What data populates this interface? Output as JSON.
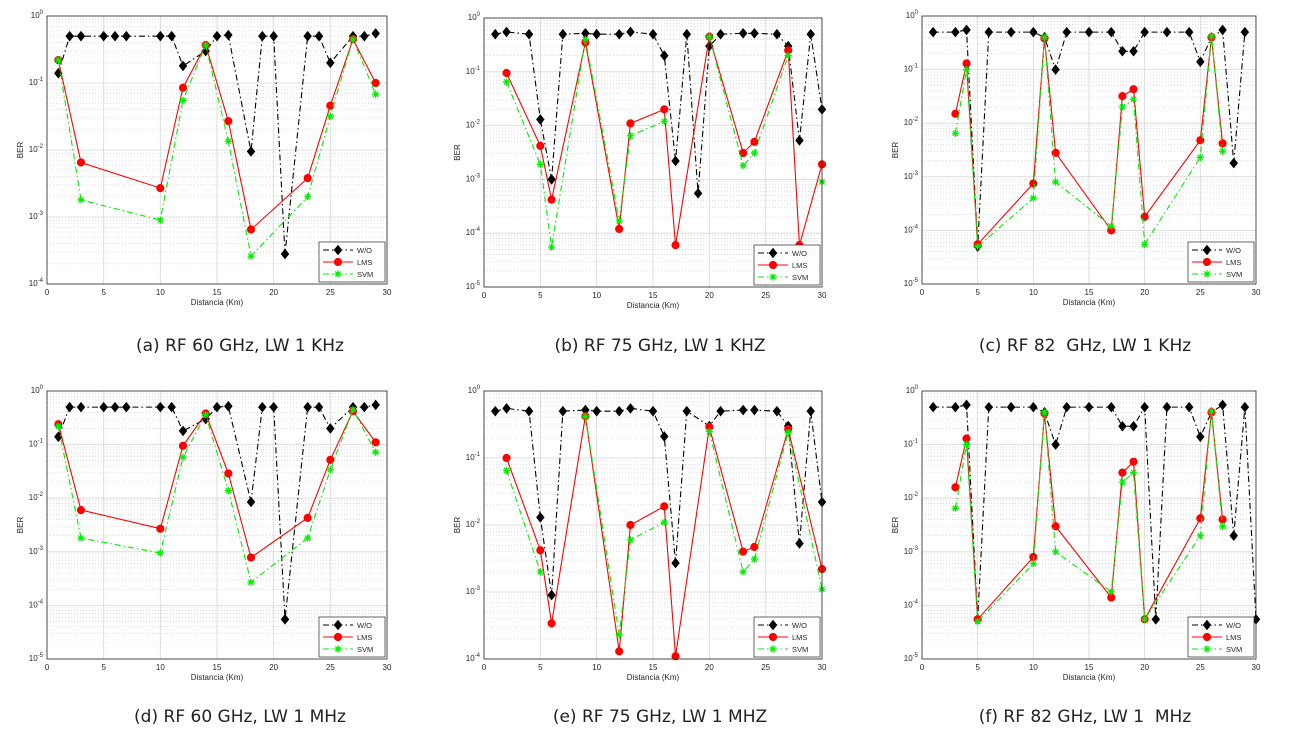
{
  "chart_data": [
    {
      "id": "a",
      "type": "line",
      "caption": "(a) RF 60 GHz, LW 1 KHz",
      "xlabel": "Distancia (Km)",
      "ylabel": "BER",
      "xlim": [
        0,
        30
      ],
      "ylim": [
        0.0001,
        1
      ],
      "yscale": "log",
      "grid": true,
      "xticks": [
        "0",
        "5",
        "10",
        "15",
        "20",
        "25",
        "30"
      ],
      "yticks": [
        "10-4",
        "10-3",
        "10-2",
        "10-1",
        "100"
      ],
      "legend_position": "bottom-right",
      "series": [
        {
          "name": "W/O",
          "x": [
            1,
            2,
            3,
            5,
            6,
            7,
            10,
            11,
            12,
            14,
            15,
            16,
            18,
            19,
            20,
            21,
            23,
            24,
            25,
            27,
            28,
            29
          ],
          "y": [
            0.14,
            0.5,
            0.5,
            0.5,
            0.5,
            0.5,
            0.5,
            0.5,
            0.18,
            0.3,
            0.5,
            0.52,
            0.0095,
            0.5,
            0.5,
            0.00028,
            0.5,
            0.5,
            0.2,
            0.5,
            0.5,
            0.55
          ]
        },
        {
          "name": "LMS",
          "x": [
            1,
            3,
            10,
            12,
            14,
            16,
            18,
            23,
            25,
            27,
            29
          ],
          "y": [
            0.22,
            0.0065,
            0.0027,
            0.085,
            0.37,
            0.027,
            0.00065,
            0.0038,
            0.046,
            0.45,
            0.1
          ]
        },
        {
          "name": "SVM",
          "x": [
            1,
            3,
            10,
            12,
            14,
            16,
            18,
            23,
            25,
            27,
            29
          ],
          "y": [
            0.22,
            0.0018,
            0.0009,
            0.055,
            0.37,
            0.0135,
            0.00026,
            0.002,
            0.032,
            0.45,
            0.068
          ]
        }
      ]
    },
    {
      "id": "b",
      "type": "line",
      "caption": "(b) RF 75 GHz, LW 1 KHZ",
      "xlabel": "Distancia (Km)",
      "ylabel": "BER",
      "xlim": [
        0,
        30
      ],
      "ylim": [
        1e-05,
        1
      ],
      "yscale": "log",
      "grid": true,
      "xticks": [
        "0",
        "5",
        "10",
        "15",
        "20",
        "25",
        "30"
      ],
      "yticks": [
        "10-5",
        "10-4",
        "10-3",
        "10-2",
        "10-1",
        "100"
      ],
      "legend_position": "bottom-right",
      "series": [
        {
          "name": "W/O",
          "x": [
            1,
            2,
            4,
            5,
            6,
            7,
            9,
            10,
            12,
            13,
            15,
            16,
            17,
            18,
            19,
            20,
            21,
            23,
            24,
            26,
            27,
            28,
            29,
            30
          ],
          "y": [
            0.5,
            0.55,
            0.5,
            0.013,
            0.001,
            0.5,
            0.52,
            0.5,
            0.5,
            0.55,
            0.5,
            0.2,
            0.0022,
            0.5,
            0.00055,
            0.3,
            0.5,
            0.52,
            0.52,
            0.5,
            0.3,
            0.0053,
            0.5,
            0.02
          ]
        },
        {
          "name": "LMS",
          "x": [
            2,
            5,
            6,
            9,
            12,
            13,
            16,
            17,
            20,
            23,
            24,
            27,
            28,
            30
          ],
          "y": [
            0.095,
            0.0042,
            0.00042,
            0.35,
            0.00012,
            0.011,
            0.02,
            6e-05,
            0.45,
            0.0031,
            0.005,
            0.25,
            6e-05,
            0.0019
          ]
        },
        {
          "name": "SVM",
          "x": [
            2,
            5,
            6,
            9,
            12,
            13,
            16,
            17,
            20,
            23,
            24,
            27,
            28,
            30
          ],
          "y": [
            0.065,
            0.0019,
            5.5e-05,
            0.4,
            0.00017,
            0.0065,
            0.012,
            null,
            0.45,
            0.0018,
            0.0031,
            0.2,
            null,
            0.0009
          ]
        }
      ]
    },
    {
      "id": "c",
      "type": "line",
      "caption": "(c) RF 82  GHz, LW 1 KHz",
      "xlabel": "Distancia (Km)",
      "ylabel": "BER",
      "xlim": [
        0,
        30
      ],
      "ylim": [
        1e-05,
        1
      ],
      "yscale": "log",
      "grid": true,
      "xticks": [
        "0",
        "5",
        "10",
        "15",
        "20",
        "25",
        "30"
      ],
      "yticks": [
        "10-5",
        "10-4",
        "10-3",
        "10-2",
        "10-1",
        "100"
      ],
      "legend_position": "bottom-right",
      "series": [
        {
          "name": "W/O",
          "x": [
            1,
            3,
            4,
            5,
            6,
            8,
            10,
            11,
            12,
            13,
            15,
            17,
            18,
            19,
            20,
            22,
            24,
            25,
            26,
            27,
            28,
            29
          ],
          "y": [
            0.5,
            0.5,
            0.55,
            5e-05,
            0.5,
            0.5,
            0.5,
            0.4,
            0.1,
            0.5,
            0.5,
            0.5,
            0.22,
            0.22,
            0.5,
            0.5,
            0.5,
            0.14,
            0.4,
            0.55,
            0.0018,
            0.5
          ]
        },
        {
          "name": "LMS",
          "x": [
            3,
            4,
            5,
            10,
            11,
            12,
            17,
            18,
            19,
            20,
            25,
            26,
            27
          ],
          "y": [
            0.015,
            0.13,
            5.5e-05,
            0.00075,
            0.38,
            0.0028,
            0.0001,
            0.032,
            0.043,
            0.00018,
            0.0048,
            0.4,
            0.0042
          ]
        },
        {
          "name": "SVM",
          "x": [
            3,
            4,
            5,
            10,
            11,
            12,
            17,
            18,
            19,
            20,
            25,
            26,
            27
          ],
          "y": [
            0.0065,
            0.1,
            5e-05,
            0.0004,
            0.4,
            0.0008,
            0.00012,
            0.02,
            0.028,
            5.5e-05,
            0.0023,
            0.42,
            0.003
          ]
        }
      ]
    },
    {
      "id": "d",
      "type": "line",
      "caption": "(d) RF 60 GHz, LW 1 MHz",
      "xlabel": "Distancia (Km)",
      "ylabel": "BER",
      "xlim": [
        0,
        30
      ],
      "ylim": [
        1e-05,
        1
      ],
      "yscale": "log",
      "grid": true,
      "xticks": [
        "0",
        "5",
        "10",
        "15",
        "20",
        "25",
        "30"
      ],
      "yticks": [
        "10-5",
        "10-4",
        "10-3",
        "10-2",
        "10-1",
        "100"
      ],
      "legend_position": "bottom-right",
      "series": [
        {
          "name": "W/O",
          "x": [
            1,
            2,
            3,
            5,
            6,
            7,
            10,
            11,
            12,
            14,
            15,
            16,
            18,
            19,
            20,
            21,
            23,
            24,
            25,
            27,
            28,
            29
          ],
          "y": [
            0.14,
            0.5,
            0.5,
            0.5,
            0.5,
            0.5,
            0.5,
            0.5,
            0.18,
            0.3,
            0.5,
            0.52,
            0.0085,
            0.5,
            0.5,
            5.5e-05,
            0.5,
            0.5,
            0.2,
            0.5,
            0.5,
            0.55
          ]
        },
        {
          "name": "LMS",
          "x": [
            1,
            3,
            10,
            12,
            14,
            16,
            18,
            23,
            25,
            27,
            29
          ],
          "y": [
            0.24,
            0.006,
            0.0027,
            0.095,
            0.38,
            0.029,
            0.00078,
            0.0043,
            0.052,
            0.42,
            0.11
          ]
        },
        {
          "name": "SVM",
          "x": [
            1,
            3,
            10,
            12,
            14,
            16,
            18,
            23,
            25,
            27,
            29
          ],
          "y": [
            0.22,
            0.0018,
            0.00095,
            0.058,
            0.36,
            0.014,
            0.00027,
            0.0018,
            0.034,
            0.45,
            0.072
          ]
        }
      ]
    },
    {
      "id": "e",
      "type": "line",
      "caption": "(e) RF 75 GHz, LW 1 MHZ",
      "xlabel": "Distancia (Km)",
      "ylabel": "BER",
      "xlim": [
        0,
        30
      ],
      "ylim": [
        0.0001,
        1
      ],
      "yscale": "log",
      "grid": true,
      "xticks": [
        "0",
        "5",
        "10",
        "15",
        "20",
        "25",
        "30"
      ],
      "yticks": [
        "10-4",
        "10-3",
        "10-2",
        "10-1",
        "100"
      ],
      "legend_position": "bottom-right",
      "series": [
        {
          "name": "W/O",
          "x": [
            1,
            2,
            4,
            5,
            6,
            7,
            9,
            10,
            12,
            13,
            15,
            16,
            17,
            18,
            20,
            21,
            23,
            24,
            26,
            27,
            28,
            29,
            30
          ],
          "y": [
            0.5,
            0.55,
            0.5,
            0.013,
            0.0009,
            0.5,
            0.52,
            0.5,
            0.5,
            0.55,
            0.5,
            0.21,
            0.0027,
            0.5,
            0.3,
            0.5,
            0.52,
            0.52,
            0.5,
            0.3,
            0.0053,
            0.5,
            0.022
          ]
        },
        {
          "name": "LMS",
          "x": [
            2,
            5,
            6,
            9,
            12,
            13,
            16,
            17,
            20,
            23,
            24,
            27,
            30
          ],
          "y": [
            0.1,
            0.0042,
            0.00034,
            0.42,
            0.00013,
            0.01,
            0.019,
            0.00011,
            0.29,
            0.004,
            0.0047,
            0.27,
            0.0022
          ]
        },
        {
          "name": "SVM",
          "x": [
            2,
            5,
            6,
            9,
            12,
            13,
            16,
            17,
            20,
            23,
            24,
            27,
            30
          ],
          "y": [
            0.065,
            0.002,
            null,
            0.42,
            0.00023,
            0.006,
            0.011,
            null,
            0.25,
            0.002,
            0.0031,
            0.24,
            0.0011
          ]
        }
      ]
    },
    {
      "id": "f",
      "type": "line",
      "caption": "(f) RF 82 GHz, LW 1  MHz",
      "xlabel": "Distancia (Km)",
      "ylabel": "BER",
      "xlim": [
        0,
        30
      ],
      "ylim": [
        1e-05,
        1
      ],
      "yscale": "log",
      "grid": true,
      "xticks": [
        "0",
        "5",
        "10",
        "15",
        "20",
        "25",
        "30"
      ],
      "yticks": [
        "10-5",
        "10-4",
        "10-3",
        "10-2",
        "10-1",
        "100"
      ],
      "legend_position": "bottom-right",
      "series": [
        {
          "name": "W/O",
          "x": [
            1,
            3,
            4,
            5,
            6,
            8,
            10,
            11,
            12,
            13,
            15,
            17,
            18,
            19,
            20,
            21,
            22,
            24,
            25,
            26,
            27,
            28,
            29,
            30
          ],
          "y": [
            0.5,
            0.5,
            0.55,
            5.5e-05,
            0.5,
            0.5,
            0.5,
            0.4,
            0.1,
            0.5,
            0.5,
            0.5,
            0.22,
            0.22,
            0.5,
            5.5e-05,
            0.5,
            0.5,
            0.14,
            0.4,
            0.55,
            0.002,
            0.5,
            5.5e-05
          ]
        },
        {
          "name": "LMS",
          "x": [
            3,
            4,
            5,
            10,
            11,
            12,
            17,
            18,
            19,
            20,
            25,
            26,
            27
          ],
          "y": [
            0.016,
            0.13,
            5.5e-05,
            0.0008,
            0.38,
            0.003,
            0.00014,
            0.03,
            0.048,
            5.5e-05,
            0.0042,
            0.4,
            0.004
          ]
        },
        {
          "name": "SVM",
          "x": [
            3,
            4,
            5,
            10,
            11,
            12,
            17,
            18,
            19,
            20,
            25,
            26,
            27
          ],
          "y": [
            0.0065,
            0.1,
            5e-05,
            0.0006,
            0.4,
            0.001,
            0.00018,
            0.02,
            0.03,
            5.5e-05,
            0.002,
            0.42,
            0.003
          ]
        }
      ]
    }
  ],
  "style": {
    "wo_color": "#000000",
    "lms_color": "#ff0000",
    "svm_color": "#00ee00",
    "grid_color": "#d6d6d6"
  }
}
